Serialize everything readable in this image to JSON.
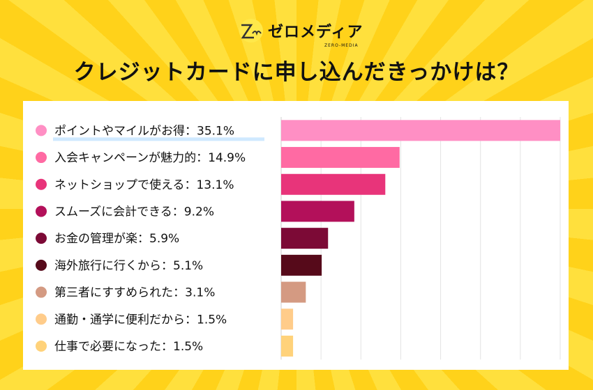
{
  "brand": {
    "name": "ゼロメディア",
    "sub": "ZERO-MEDIA"
  },
  "title": "クレジットカードに申し込んだきっかけは？",
  "chart_data": {
    "type": "bar",
    "orientation": "horizontal",
    "title": "クレジットカードに申し込んだきっかけは？",
    "categories": [
      "ポイントやマイルがお得",
      "入会キャンペーンが魅力的",
      "ネットショップで使える",
      "スムーズに会計できる",
      "お金の管理が楽",
      "海外旅行に行くから",
      "第三者にすすめられた",
      "通勤・通学に便利だから",
      "仕事で必要になった"
    ],
    "values": [
      35.1,
      14.9,
      13.1,
      9.2,
      5.9,
      5.1,
      3.1,
      1.5,
      1.5
    ],
    "labels": [
      "ポイントやマイルがお得：35.1%",
      "入会キャンペーンが魅力的：14.9%",
      "ネットショップで使える：13.1%",
      "スムーズに会計できる：9.2%",
      "お金の管理が楽：5.9%",
      "海外旅行に行くから：5.1%",
      "第三者にすすめられた：3.1%",
      "通勤・通学に便利だから：1.5%",
      "仕事で必要になった：1.5%"
    ],
    "colors": [
      "#ff8fc4",
      "#ff6aa3",
      "#e8347a",
      "#b3105a",
      "#7c0a36",
      "#560a1a",
      "#d49a82",
      "#ffcc8a",
      "#ffd27a"
    ],
    "xlim": [
      0,
      35.1
    ],
    "grid": true,
    "unit": "%"
  }
}
